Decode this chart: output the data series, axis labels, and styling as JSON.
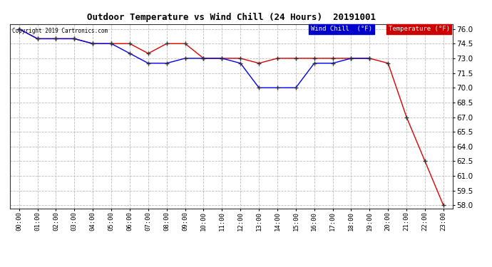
{
  "title": "Outdoor Temperature vs Wind Chill (24 Hours)  20191001",
  "copyright": "Copyright 2019 Cartronics.com",
  "x_labels": [
    "00:00",
    "01:00",
    "02:00",
    "03:00",
    "04:00",
    "05:00",
    "06:00",
    "07:00",
    "08:00",
    "09:00",
    "10:00",
    "11:00",
    "12:00",
    "13:00",
    "14:00",
    "15:00",
    "16:00",
    "17:00",
    "18:00",
    "19:00",
    "20:00",
    "21:00",
    "22:00",
    "23:00"
  ],
  "temperature": [
    76.0,
    75.0,
    75.0,
    75.0,
    74.5,
    74.5,
    74.5,
    73.5,
    74.5,
    74.5,
    73.0,
    73.0,
    73.0,
    72.5,
    73.0,
    73.0,
    73.0,
    73.0,
    73.0,
    73.0,
    72.5,
    67.0,
    62.5,
    58.0
  ],
  "wind_chill": [
    76.0,
    75.0,
    75.0,
    75.0,
    74.5,
    74.5,
    73.5,
    72.5,
    72.5,
    73.0,
    73.0,
    73.0,
    72.5,
    70.0,
    70.0,
    70.0,
    72.5,
    72.5,
    73.0,
    73.0,
    null,
    null,
    null,
    null
  ],
  "ylim_min": 58.0,
  "ylim_max": 76.0,
  "ytick_interval": 1.5,
  "temp_color": "#dd0000",
  "wind_color": "#0000ee",
  "bg_color": "#ffffff",
  "plot_bg_color": "#ffffff",
  "grid_color": "#bbbbbb",
  "legend_wind_bg": "#0000cc",
  "legend_temp_bg": "#cc0000",
  "legend_text_color": "#ffffff"
}
